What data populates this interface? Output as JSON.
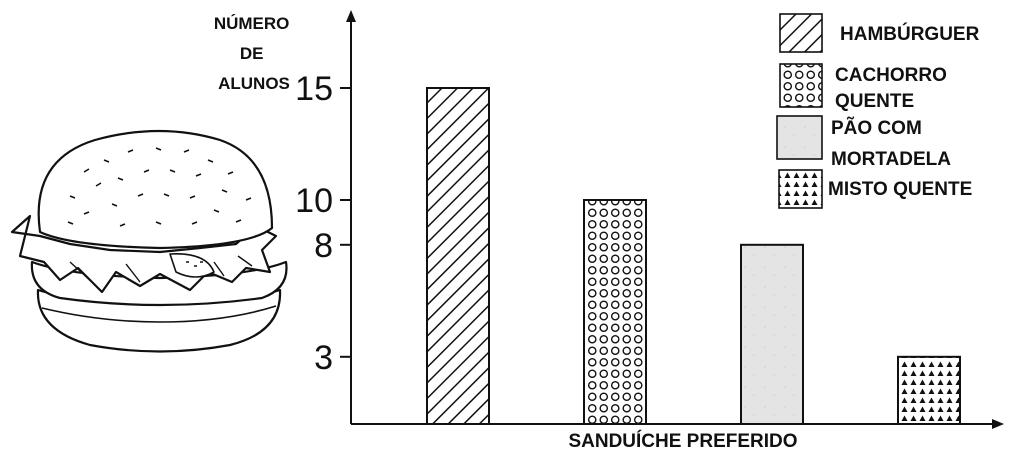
{
  "chart_data": {
    "type": "bar",
    "ylabel_lines": [
      "NÚMERO",
      "DE",
      "ALUNOS"
    ],
    "xlabel": "SANDUÍCHE PREFERIDO",
    "y_ticks": [
      3,
      8,
      10,
      15
    ],
    "ylim": [
      0,
      16.5
    ],
    "grid": false,
    "legend_position": "top-right",
    "categories": [
      "HAMBÚRGUER",
      "CACHORRO QUENTE",
      "PÃO COM MORTADELA",
      "MISTO QUENTE"
    ],
    "values": [
      15,
      10,
      8,
      3
    ],
    "legend": [
      {
        "lines": [
          "HAMBÚRGUER"
        ],
        "pattern": "diagonal-hatch"
      },
      {
        "lines": [
          "CACHORRO",
          "QUENTE"
        ],
        "pattern": "circles"
      },
      {
        "lines": [
          "PÃO COM",
          "MORTADELA"
        ],
        "pattern": "light-gray"
      },
      {
        "lines": [
          "MISTO QUENTE"
        ],
        "pattern": "triangles"
      }
    ],
    "colors": {
      "ink": "#111111",
      "gray_fill": "#e4e4e4",
      "bun": "#ffffff"
    }
  },
  "illustration": {
    "icon": "hamburger-illustration-icon"
  }
}
